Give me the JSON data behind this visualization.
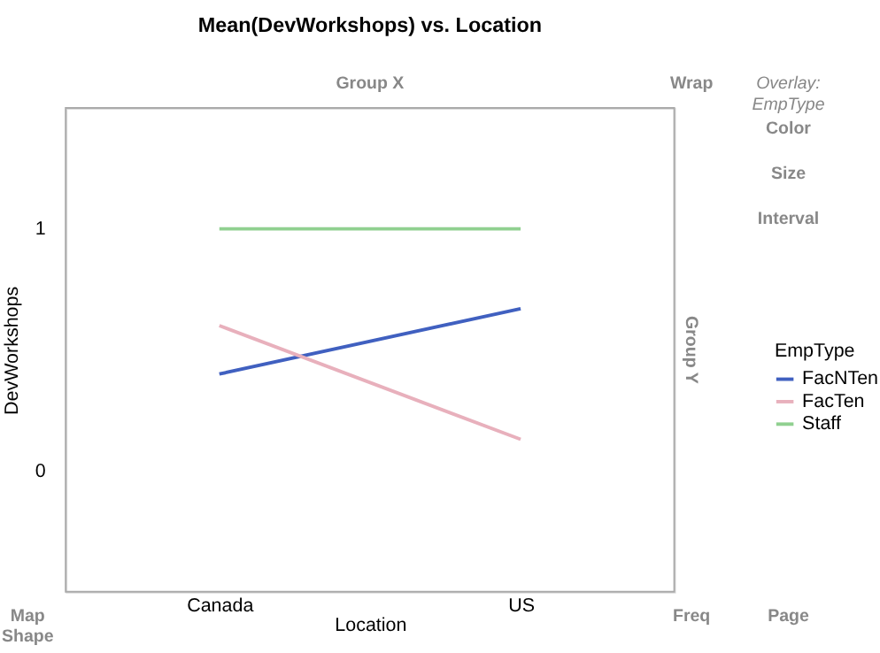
{
  "chart_data": {
    "type": "line",
    "title": "Mean(DevWorkshops) vs. Location",
    "xlabel": "Location",
    "ylabel": "DevWorkshops",
    "legend_title": "EmpType",
    "categories": [
      "Canada",
      "US"
    ],
    "series": [
      {
        "name": "FacNTen",
        "color": "#4060c0",
        "values": [
          0.4,
          0.67
        ]
      },
      {
        "name": "FacTen",
        "color": "#e8b0bc",
        "values": [
          0.6,
          0.13
        ]
      },
      {
        "name": "Staff",
        "color": "#90d090",
        "values": [
          1,
          1
        ]
      }
    ],
    "ylim": [
      -0.5,
      1.5
    ],
    "yticks": [
      0,
      1
    ],
    "grid": false,
    "legend": "right",
    "marker": "none",
    "line_style": "solid",
    "annotations": [
      "Group X",
      "Wrap",
      "Overlay: EmpType",
      "Color",
      "Size",
      "Interval",
      "Group Y",
      "Map Shape",
      "Freq",
      "Page"
    ]
  }
}
